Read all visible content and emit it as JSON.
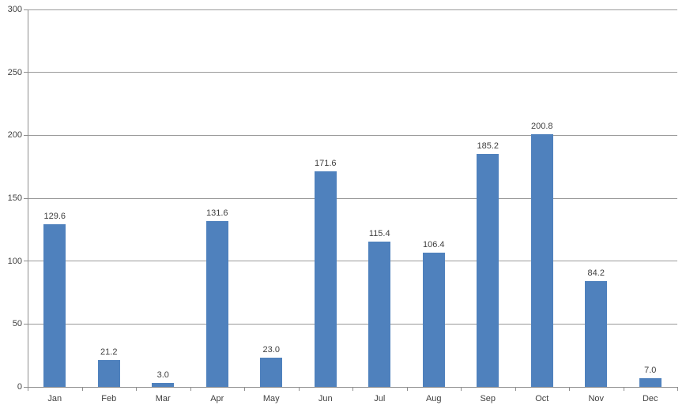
{
  "chart_data": {
    "type": "bar",
    "title": "",
    "xlabel": "",
    "ylabel": "",
    "categories": [
      "Jan",
      "Feb",
      "Mar",
      "Apr",
      "May",
      "Jun",
      "Jul",
      "Aug",
      "Sep",
      "Oct",
      "Nov",
      "Dec"
    ],
    "values": [
      129.6,
      21.2,
      3.0,
      131.6,
      23.0,
      171.6,
      115.4,
      106.4,
      185.2,
      200.8,
      84.2,
      7.0
    ],
    "value_labels": [
      "129.6",
      "21.2",
      "3.0",
      "131.6",
      "23.0",
      "171.6",
      "115.4",
      "106.4",
      "185.2",
      "200.8",
      "84.2",
      "7.0"
    ],
    "ylim": [
      0,
      300
    ],
    "ytick_step": 50,
    "ytick_labels": [
      "0",
      "50",
      "100",
      "150",
      "200",
      "250",
      "300"
    ],
    "grid": true,
    "legend": false,
    "colors": {
      "bar": "#4f81bd",
      "grid": "#9a9a9a",
      "axis": "#8e8e8e",
      "text": "#3f3f3f"
    }
  }
}
